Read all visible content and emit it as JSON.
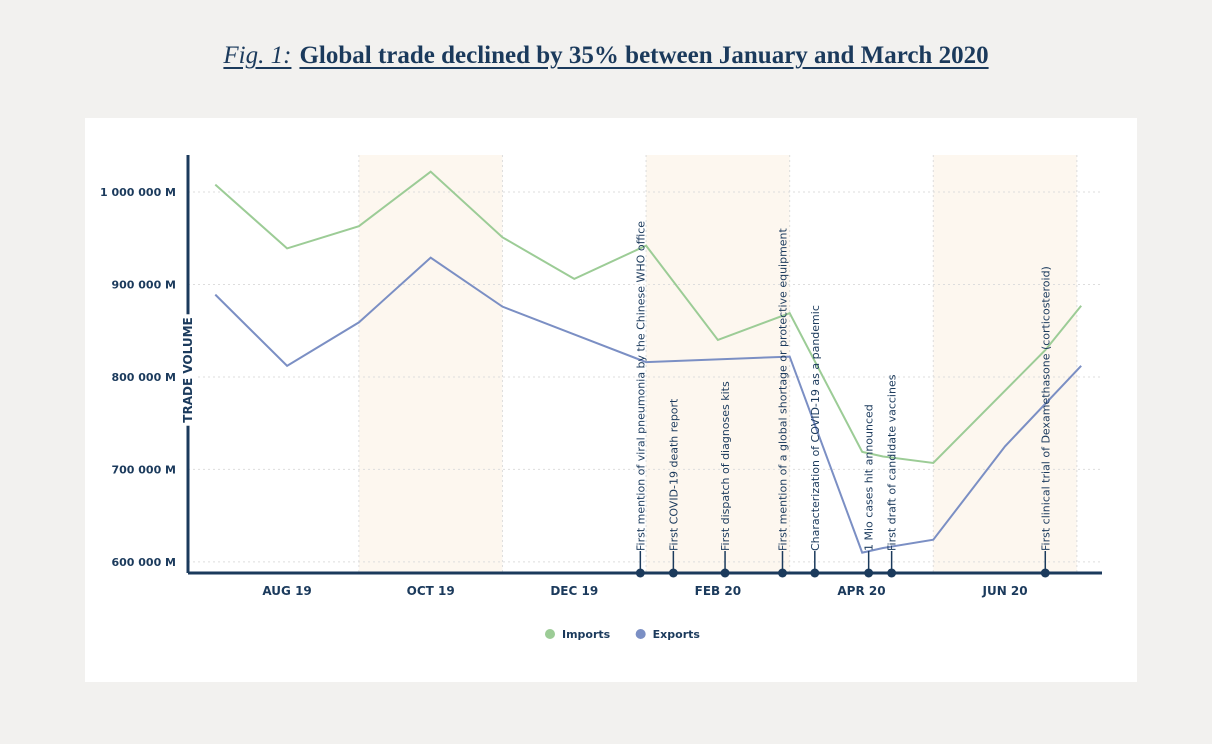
{
  "chart_data": {
    "type": "line",
    "figure_label": "Fig. 1:",
    "title": "Global trade declined by 35% between January and March 2020",
    "y_label": "TRADE VOLUME",
    "xlim": [
      -0.38,
      12.35
    ],
    "xticks": [
      {
        "value": 1,
        "label": "AUG 19"
      },
      {
        "value": 3,
        "label": "OCT 19"
      },
      {
        "value": 5,
        "label": "DEC 19"
      },
      {
        "value": 7,
        "label": "FEB 20"
      },
      {
        "value": 9,
        "label": "APR 20"
      },
      {
        "value": 11,
        "label": "JUN 20"
      }
    ],
    "ylim": [
      588000,
      1040000
    ],
    "yticks": [
      {
        "value": 600000,
        "label": "600 000 M"
      },
      {
        "value": 700000,
        "label": "700 000 M"
      },
      {
        "value": 800000,
        "label": "800 000 M"
      },
      {
        "value": 900000,
        "label": "900 000 M"
      },
      {
        "value": 1000000,
        "label": "1 000 000 M"
      }
    ],
    "grid": true,
    "bands": [
      [
        2,
        4
      ],
      [
        6,
        8
      ],
      [
        10,
        12
      ]
    ],
    "series": [
      {
        "name": "Imports",
        "color": "#9ccc96",
        "x": [
          0,
          1,
          2,
          3,
          4,
          5,
          6,
          7,
          8,
          9.01,
          9.3,
          10,
          11.56,
          12.06
        ],
        "values": [
          1008000,
          939000,
          963000,
          1022000,
          951000,
          906000,
          942000,
          840000,
          869000,
          719000,
          714000,
          707000,
          829000,
          877000
        ]
      },
      {
        "name": "Exports",
        "color": "#7b8fc4",
        "x": [
          0,
          1,
          2,
          3,
          4,
          5,
          6,
          8,
          9.01,
          9.3,
          10,
          11,
          12.06
        ],
        "values": [
          889000,
          812000,
          859000,
          929000,
          876000,
          846000,
          816000,
          822000,
          610000,
          615000,
          624000,
          725000,
          812000
        ]
      }
    ],
    "events": [
      {
        "x": 5.92,
        "label": "First mention of viral pneumonia by the Chinese WHO office"
      },
      {
        "x": 6.38,
        "label": "First COVID-19 death report"
      },
      {
        "x": 7.1,
        "label": "First dispatch of diagnoses kits"
      },
      {
        "x": 7.9,
        "label": "First mention of a global shortage or protective equipment"
      },
      {
        "x": 8.35,
        "label": "Characterization of COVID-19 as a pandemic"
      },
      {
        "x": 9.1,
        "label": "1 Mio cases hit announced"
      },
      {
        "x": 9.42,
        "label": "First draft of candidate vaccines"
      },
      {
        "x": 11.56,
        "label": "First clinical trial of Dexamethasone (corticosteroid)"
      }
    ],
    "event_color": "#1b3a5c"
  }
}
